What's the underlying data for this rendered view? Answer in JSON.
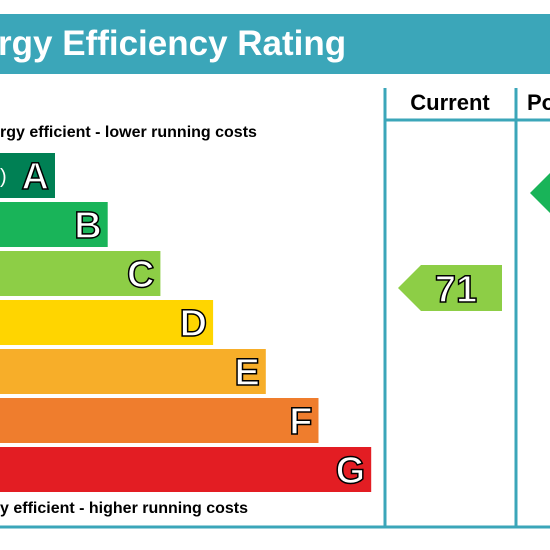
{
  "header": {
    "title": "rgy Efficiency Rating"
  },
  "top_note": "rgy efficient - lower running costs",
  "bottom_note": "y efficient - higher running costs",
  "columns": [
    "Current",
    "Po"
  ],
  "bands": [
    {
      "letter": "A",
      "range": ")",
      "color": "#008054"
    },
    {
      "letter": "B",
      "color": "#19b459"
    },
    {
      "letter": "C",
      "color": "#8dce46"
    },
    {
      "letter": "D",
      "color": "#ffd500"
    },
    {
      "letter": "E",
      "color": "#f7ae29"
    },
    {
      "letter": "F",
      "color": "#ef7d2d"
    },
    {
      "letter": "G",
      "color": "#e31d23"
    }
  ],
  "current": {
    "value": 71,
    "color": "#8dce46"
  }
}
